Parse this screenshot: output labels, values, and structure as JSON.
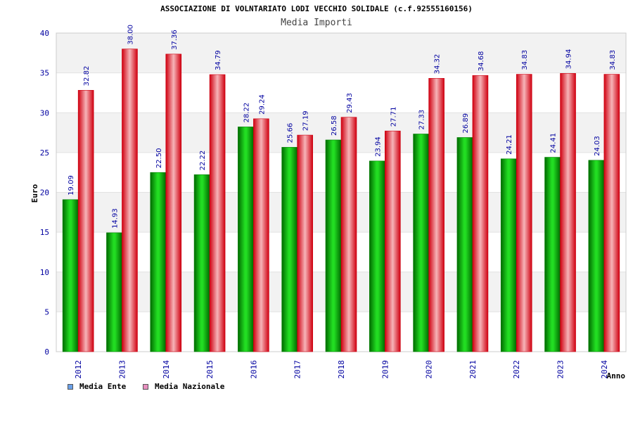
{
  "chart_data": {
    "type": "bar",
    "title": "ASSOCIAZIONE DI VOLNTARIATO LODI VECCHIO SOLIDALE (c.f.92555160156)",
    "subtitle": "Media Importi",
    "xlabel": "Anno",
    "ylabel": "Euro",
    "ylim": [
      0,
      40
    ],
    "yticks": [
      "0",
      "5",
      "10",
      "15",
      "20",
      "25",
      "30",
      "35",
      "40"
    ],
    "categories": [
      "2012",
      "2013",
      "2014",
      "2015",
      "2016",
      "2017",
      "2018",
      "2019",
      "2020",
      "2021",
      "2022",
      "2023",
      "2024"
    ],
    "series": [
      {
        "name": "Media Ente",
        "values": [
          19.09,
          14.93,
          22.5,
          22.22,
          28.22,
          25.66,
          26.58,
          23.94,
          27.33,
          26.89,
          24.21,
          24.41,
          24.03
        ],
        "labels": [
          "19.09",
          "14.93",
          "22.50",
          "22.22",
          "28.22",
          "25.66",
          "26.58",
          "23.94",
          "27.33",
          "26.89",
          "24.21",
          "24.41",
          "24.03"
        ]
      },
      {
        "name": "Media Nazionale",
        "values": [
          32.82,
          38.0,
          37.36,
          34.79,
          29.24,
          27.19,
          29.43,
          27.71,
          34.32,
          34.68,
          34.83,
          34.94,
          34.83
        ],
        "labels": [
          "32.82",
          "38.00",
          "37.36",
          "34.79",
          "29.24",
          "27.19",
          "29.43",
          "27.71",
          "34.32",
          "34.68",
          "34.83",
          "34.94",
          "34.83"
        ]
      }
    ],
    "grid": true,
    "legend_position": "bottom-left",
    "colors": {
      "series_0": "#00b000",
      "series_0_legend": "#6aa0e8",
      "series_1": "#ee1c24",
      "series_1_legend": "#e890c0",
      "axis_text": "#0000a0",
      "band": "#f2f2f2"
    }
  }
}
